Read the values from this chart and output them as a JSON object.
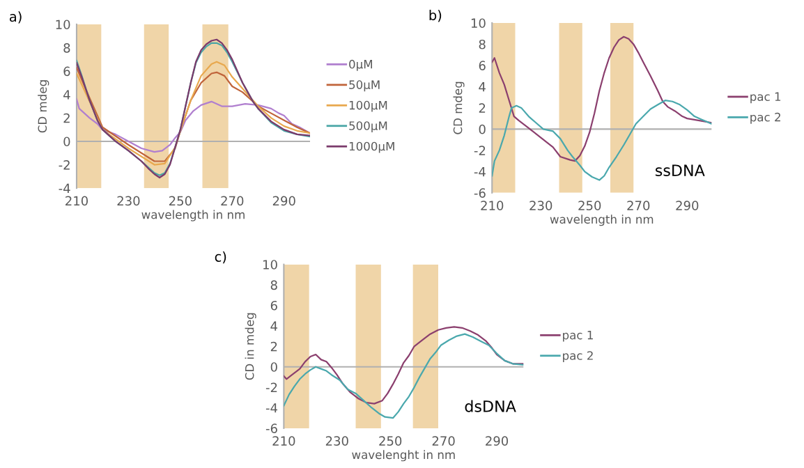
{
  "chart_data": [
    {
      "type": "line",
      "title": "a)",
      "xlabel": "wavelength in nm",
      "ylabel": "CD mdeg",
      "xlim": [
        210,
        300
      ],
      "xticks": [
        210,
        230,
        250,
        270,
        290
      ],
      "ylim": [
        -4,
        10
      ],
      "yticks": [
        -4,
        -2,
        0,
        2,
        4,
        6,
        8,
        10
      ],
      "legend": "right",
      "grid": false,
      "ref_lines": [
        {
          "axis": "y",
          "value": 0,
          "color": "#b0b0b0"
        }
      ],
      "bands": [
        {
          "axis": "x",
          "from": 210,
          "to": 219.5,
          "color": "#f0d5a8"
        },
        {
          "axis": "x",
          "from": 236,
          "to": 245.5,
          "color": "#f0d5a8"
        },
        {
          "axis": "x",
          "from": 258.5,
          "to": 268.5,
          "color": "#f0d5a8"
        }
      ],
      "series": [
        {
          "name": "0µM",
          "color": "#b07fcf",
          "x": [
            210,
            211,
            215,
            218,
            220,
            225,
            230,
            235,
            240,
            243,
            246,
            248,
            250,
            252,
            255,
            258,
            262,
            266,
            270,
            275,
            280,
            285,
            288,
            290,
            293,
            296,
            300
          ],
          "values": [
            3.6,
            2.8,
            2.0,
            1.5,
            1.0,
            0.6,
            0.0,
            -0.6,
            -0.9,
            -0.8,
            -0.3,
            0.3,
            0.8,
            1.8,
            2.6,
            3.1,
            3.4,
            3.0,
            3.0,
            3.2,
            3.1,
            2.8,
            2.4,
            2.2,
            1.5,
            1.2,
            0.7
          ]
        },
        {
          "name": "50µM",
          "color": "#c0643a",
          "x": [
            210,
            215,
            220,
            230,
            240,
            244,
            248,
            250,
            254,
            258,
            262,
            264,
            267,
            270,
            274,
            280,
            285,
            290,
            295,
            300
          ],
          "values": [
            6.3,
            3.7,
            1.2,
            -0.3,
            -1.7,
            -1.7,
            -0.6,
            0.9,
            3.5,
            5.0,
            5.8,
            5.9,
            5.6,
            4.7,
            4.2,
            3.0,
            2.4,
            1.8,
            1.2,
            0.7
          ]
        },
        {
          "name": "100µM",
          "color": "#e8a84e",
          "x": [
            210,
            215,
            220,
            230,
            240,
            244,
            248,
            250,
            254,
            258,
            262,
            264,
            267,
            270,
            274,
            280,
            285,
            290,
            295,
            300
          ],
          "values": [
            5.8,
            3.4,
            1.0,
            -0.6,
            -2.0,
            -1.9,
            -0.5,
            0.9,
            3.5,
            5.6,
            6.6,
            6.8,
            6.5,
            5.5,
            4.5,
            3.0,
            2.0,
            1.3,
            0.9,
            0.7
          ]
        },
        {
          "name": "500µM",
          "color": "#4aa6a6",
          "x": [
            210,
            212,
            215,
            218,
            220,
            225,
            230,
            235,
            238,
            240,
            242,
            244,
            246,
            248,
            250,
            252,
            254,
            256,
            258,
            260,
            262,
            264,
            266,
            268,
            270,
            272,
            274,
            276,
            278,
            280,
            285,
            290,
            295,
            300
          ],
          "values": [
            6.9,
            5.6,
            3.5,
            1.8,
            1.0,
            0.0,
            -0.8,
            -1.7,
            -2.3,
            -2.7,
            -2.9,
            -2.7,
            -1.9,
            -0.5,
            1.0,
            3.0,
            5.0,
            6.7,
            7.6,
            8.1,
            8.4,
            8.4,
            8.2,
            7.6,
            6.8,
            5.9,
            5.0,
            4.2,
            3.4,
            2.8,
            1.6,
            0.9,
            0.6,
            0.4
          ]
        },
        {
          "name": "1000µM",
          "color": "#7b3a6b",
          "x": [
            210,
            212,
            215,
            218,
            220,
            225,
            230,
            235,
            238,
            240,
            242,
            244,
            246,
            248,
            250,
            252,
            254,
            256,
            258,
            260,
            262,
            264,
            266,
            268,
            270,
            272,
            274,
            276,
            278,
            280,
            285,
            290,
            295,
            300
          ],
          "values": [
            6.7,
            5.5,
            3.5,
            1.8,
            1.0,
            0.0,
            -0.8,
            -1.7,
            -2.4,
            -2.8,
            -3.1,
            -2.8,
            -2.0,
            -0.5,
            1.0,
            3.0,
            5.0,
            6.8,
            7.8,
            8.3,
            8.6,
            8.7,
            8.4,
            7.8,
            7.0,
            6.0,
            5.0,
            4.2,
            3.4,
            2.8,
            1.7,
            1.0,
            0.6,
            0.5
          ]
        }
      ]
    },
    {
      "type": "line",
      "title": "b)",
      "xlabel": "wavelength in nm",
      "ylabel": "CD mdeg",
      "xlim": [
        210,
        300
      ],
      "xticks": [
        210,
        230,
        250,
        270,
        290
      ],
      "ylim": [
        -6,
        10
      ],
      "yticks": [
        -6,
        -4,
        -2,
        0,
        2,
        4,
        6,
        8,
        10
      ],
      "legend": "right",
      "grid": false,
      "annotations": [
        "ssDNA"
      ],
      "ref_lines": [
        {
          "axis": "y",
          "value": 0,
          "color": "#b0b0b0"
        }
      ],
      "bands": [
        {
          "axis": "x",
          "from": 210,
          "to": 219.5,
          "color": "#f0d5a8"
        },
        {
          "axis": "x",
          "from": 237.5,
          "to": 247,
          "color": "#f0d5a8"
        },
        {
          "axis": "x",
          "from": 258.5,
          "to": 268,
          "color": "#f0d5a8"
        }
      ],
      "series": [
        {
          "name": "pac 1",
          "color": "#8b3f6e",
          "x": [
            210,
            211,
            213,
            215,
            217,
            219,
            221,
            225,
            230,
            235,
            238,
            242,
            244,
            246,
            248,
            250,
            252,
            254,
            256,
            258,
            260,
            262,
            264,
            266,
            268,
            270,
            272,
            275,
            278,
            280,
            282,
            285,
            288,
            290,
            295,
            300
          ],
          "values": [
            6.3,
            6.7,
            5.3,
            4.2,
            2.7,
            1.2,
            0.8,
            0.1,
            -0.8,
            -1.7,
            -2.6,
            -2.9,
            -3.0,
            -2.5,
            -1.6,
            -0.3,
            1.5,
            3.6,
            5.3,
            6.7,
            7.7,
            8.4,
            8.7,
            8.5,
            8.0,
            7.2,
            6.3,
            5.0,
            3.6,
            2.6,
            2.1,
            1.7,
            1.2,
            1.0,
            0.8,
            0.6
          ]
        },
        {
          "name": "pac 2",
          "color": "#4aa8ad",
          "x": [
            210,
            211,
            213,
            215,
            217,
            218,
            220,
            222,
            225,
            228,
            231,
            235,
            238,
            241,
            243,
            246,
            248,
            251,
            254,
            256,
            258,
            261,
            264,
            267,
            269,
            272,
            275,
            278,
            281,
            284,
            287,
            290,
            293,
            296,
            300
          ],
          "values": [
            -4.4,
            -3.0,
            -2.0,
            -0.6,
            1.2,
            2.0,
            2.2,
            2.0,
            1.2,
            0.6,
            0.0,
            -0.2,
            -0.9,
            -2.0,
            -2.6,
            -3.4,
            -4.0,
            -4.5,
            -4.8,
            -4.4,
            -3.6,
            -2.6,
            -1.5,
            -0.3,
            0.5,
            1.2,
            1.9,
            2.3,
            2.7,
            2.6,
            2.3,
            1.8,
            1.2,
            0.9,
            0.5
          ]
        }
      ]
    },
    {
      "type": "line",
      "title": "c)",
      "xlabel": "wavelenght in nm",
      "ylabel": "CD in mdeg",
      "xlim": [
        210,
        300
      ],
      "xticks": [
        210,
        230,
        250,
        270,
        290
      ],
      "ylim": [
        -6,
        10
      ],
      "yticks": [
        -6,
        -4,
        -2,
        0,
        2,
        4,
        6,
        8,
        10
      ],
      "legend": "right",
      "grid": false,
      "annotations": [
        "dsDNA"
      ],
      "ref_lines": [
        {
          "axis": "y",
          "value": 0,
          "color": "#b0b0b0"
        }
      ],
      "bands": [
        {
          "axis": "x",
          "from": 210,
          "to": 219.5,
          "color": "#f0d5a8"
        },
        {
          "axis": "x",
          "from": 237,
          "to": 246.5,
          "color": "#f0d5a8"
        },
        {
          "axis": "x",
          "from": 258.5,
          "to": 268,
          "color": "#f0d5a8"
        }
      ],
      "series": [
        {
          "name": "pac 1",
          "color": "#8b3f6e",
          "x": [
            210,
            211,
            213,
            216,
            218,
            220,
            222,
            224,
            226,
            228,
            230,
            232,
            235,
            238,
            241,
            244,
            247,
            249,
            251,
            253,
            255,
            257,
            259,
            262,
            265,
            268,
            271,
            274,
            277,
            280,
            283,
            286,
            288,
            290,
            293,
            296,
            300
          ],
          "values": [
            -0.9,
            -1.2,
            -0.8,
            -0.2,
            0.5,
            1.0,
            1.2,
            0.7,
            0.5,
            -0.1,
            -0.8,
            -1.6,
            -2.5,
            -3.1,
            -3.5,
            -3.6,
            -3.3,
            -2.6,
            -1.7,
            -0.7,
            0.4,
            1.1,
            2.0,
            2.6,
            3.2,
            3.6,
            3.8,
            3.9,
            3.8,
            3.5,
            3.1,
            2.5,
            1.9,
            1.2,
            0.6,
            0.3,
            0.3
          ]
        },
        {
          "name": "pac 2",
          "color": "#4aa8ad",
          "x": [
            210,
            212,
            214,
            216,
            218,
            220,
            222,
            224,
            226,
            228,
            231,
            234,
            237,
            240,
            243,
            246,
            248,
            251,
            253,
            255,
            257,
            259,
            261,
            263,
            265,
            267,
            269,
            272,
            275,
            278,
            281,
            284,
            287,
            290,
            293,
            296,
            300
          ],
          "values": [
            -3.8,
            -2.7,
            -1.9,
            -1.2,
            -0.7,
            -0.3,
            0.0,
            -0.2,
            -0.4,
            -0.8,
            -1.3,
            -2.2,
            -2.6,
            -3.3,
            -4.0,
            -4.6,
            -4.9,
            -5.0,
            -4.4,
            -3.6,
            -2.9,
            -2.0,
            -1.0,
            -0.1,
            0.8,
            1.4,
            2.1,
            2.6,
            3.0,
            3.2,
            2.9,
            2.5,
            2.1,
            1.3,
            0.6,
            0.3,
            0.2
          ]
        }
      ]
    }
  ]
}
